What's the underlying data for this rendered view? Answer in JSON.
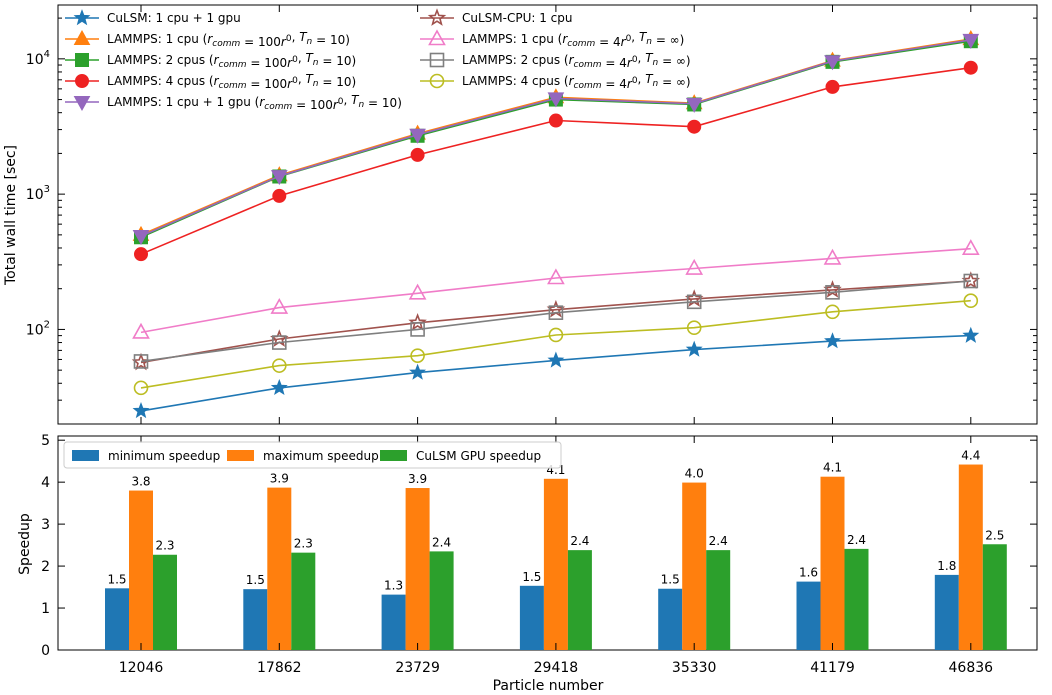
{
  "chart_data": [
    {
      "type": "line",
      "yscale": "log",
      "ylabel": "Total wall time [sec]",
      "xlabel": "",
      "ylim": [
        20,
        25000
      ],
      "y_ticks": [
        {
          "value": 100,
          "base": "10",
          "exp": "2"
        },
        {
          "value": 1000,
          "base": "10",
          "exp": "3"
        },
        {
          "value": 10000,
          "base": "10",
          "exp": "4"
        }
      ],
      "legend_position": "top-left",
      "x": [
        12046,
        17862,
        23729,
        29418,
        35330,
        41179,
        46836
      ],
      "series": [
        {
          "name": "CuLSM: 1 cpu + 1 gpu",
          "label_parts": [
            {
              "t": "CuLSM: 1 cpu + 1 gpu"
            }
          ],
          "color": "#1f77b4",
          "marker": "star",
          "filled": true,
          "values": [
            25,
            37,
            48,
            59,
            71,
            82,
            90
          ]
        },
        {
          "name": "LAMMPS: 1 cpu (r_comm = 100r^0, T_n = 10)",
          "label_parts": [
            {
              "t": "LAMMPS: 1 cpu ("
            },
            {
              "i": "r"
            },
            {
              "sub": "comm"
            },
            {
              "t": " = 100"
            },
            {
              "i": "r"
            },
            {
              "sup": "0"
            },
            {
              "t": ", "
            },
            {
              "i": "T"
            },
            {
              "sub": "n"
            },
            {
              "t": " = 10)"
            }
          ],
          "color": "#ff7f0e",
          "marker": "triangle-up",
          "filled": true,
          "values": [
            500,
            1380,
            2800,
            5200,
            4700,
            9700,
            14000
          ]
        },
        {
          "name": "LAMMPS: 2 cpus (r_comm = 100r^0, T_n = 10)",
          "label_parts": [
            {
              "t": "LAMMPS: 2 cpus ("
            },
            {
              "i": "r"
            },
            {
              "sub": "comm"
            },
            {
              "t": " = 100"
            },
            {
              "i": "r"
            },
            {
              "sup": "0"
            },
            {
              "t": ", "
            },
            {
              "i": "T"
            },
            {
              "sub": "n"
            },
            {
              "t": " = 10)"
            }
          ],
          "color": "#2ca02c",
          "marker": "square",
          "filled": true,
          "values": [
            480,
            1350,
            2700,
            5000,
            4600,
            9500,
            13500
          ]
        },
        {
          "name": "LAMMPS: 4 cpus (r_comm = 100r^0, T_n = 10)",
          "label_parts": [
            {
              "t": "LAMMPS: 4 cpus ("
            },
            {
              "i": "r"
            },
            {
              "sub": "comm"
            },
            {
              "t": " = 100"
            },
            {
              "i": "r"
            },
            {
              "sup": "0"
            },
            {
              "t": ", "
            },
            {
              "i": "T"
            },
            {
              "sub": "n"
            },
            {
              "t": " = 10)"
            }
          ],
          "color": "#ee2222",
          "marker": "circle",
          "filled": true,
          "values": [
            360,
            970,
            1950,
            3500,
            3150,
            6200,
            8600
          ]
        },
        {
          "name": "LAMMPS: 1 cpu + 1 gpu (r_comm = 100r^0, T_n = 10)",
          "label_parts": [
            {
              "t": "LAMMPS: 1 cpu + 1 gpu ("
            },
            {
              "i": "r"
            },
            {
              "sub": "comm"
            },
            {
              "t": " = 100"
            },
            {
              "i": "r"
            },
            {
              "sup": "0"
            },
            {
              "t": ", "
            },
            {
              "i": "T"
            },
            {
              "sub": "n"
            },
            {
              "t": " = 10)"
            }
          ],
          "color": "#9467bd",
          "marker": "triangle-down",
          "filled": true,
          "values": [
            490,
            1360,
            2750,
            5100,
            4650,
            9600,
            13800
          ]
        },
        {
          "name": "CuLSM-CPU: 1 cpu",
          "label_parts": [
            {
              "t": "CuLSM-CPU: 1 cpu"
            }
          ],
          "color": "#a0524d",
          "marker": "star",
          "filled": false,
          "values": [
            57,
            85,
            112,
            140,
            168,
            196,
            228
          ]
        },
        {
          "name": "LAMMPS: 1 cpu (r_comm = 4r^0, T_n = inf)",
          "label_parts": [
            {
              "t": "LAMMPS: 1 cpu ("
            },
            {
              "i": "r"
            },
            {
              "sub": "comm"
            },
            {
              "t": " = 4"
            },
            {
              "i": "r"
            },
            {
              "sup": "0"
            },
            {
              "t": ", "
            },
            {
              "i": "T"
            },
            {
              "sub": "n"
            },
            {
              "t": " = ∞)"
            }
          ],
          "color": "#f07cc8",
          "marker": "triangle-up",
          "filled": false,
          "values": [
            95,
            145,
            185,
            240,
            282,
            335,
            395
          ]
        },
        {
          "name": "LAMMPS: 2 cpus (r_comm = 4r^0, T_n = inf)",
          "label_parts": [
            {
              "t": "LAMMPS: 2 cpus ("
            },
            {
              "i": "r"
            },
            {
              "sub": "comm"
            },
            {
              "t": " = 4"
            },
            {
              "i": "r"
            },
            {
              "sup": "0"
            },
            {
              "t": ", "
            },
            {
              "i": "T"
            },
            {
              "sub": "n"
            },
            {
              "t": " = ∞)"
            }
          ],
          "color": "#7f7f7f",
          "marker": "square",
          "filled": false,
          "values": [
            58,
            80,
            100,
            133,
            160,
            188,
            228
          ]
        },
        {
          "name": "LAMMPS: 4 cpus (r_comm = 4r^0, T_n = inf)",
          "label_parts": [
            {
              "t": "LAMMPS: 4 cpus ("
            },
            {
              "i": "r"
            },
            {
              "sub": "comm"
            },
            {
              "t": " = 4"
            },
            {
              "i": "r"
            },
            {
              "sup": "0"
            },
            {
              "t": ", "
            },
            {
              "i": "T"
            },
            {
              "sub": "n"
            },
            {
              "t": " = ∞)"
            }
          ],
          "color": "#bcbd22",
          "marker": "circle",
          "filled": false,
          "values": [
            37,
            54,
            64,
            91,
            103,
            135,
            163
          ]
        }
      ]
    },
    {
      "type": "bar",
      "ylabel": "Speedup",
      "xlabel": "Particle number",
      "ylim": [
        0,
        5.1
      ],
      "y_ticks": [
        0,
        1,
        2,
        3,
        4,
        5
      ],
      "categories": [
        "12046",
        "17862",
        "23729",
        "29418",
        "35330",
        "41179",
        "46836"
      ],
      "legend_position": "top-left",
      "series": [
        {
          "name": "minimum speedup",
          "color": "#1f77b4",
          "values": [
            1.47,
            1.45,
            1.32,
            1.53,
            1.46,
            1.63,
            1.79
          ],
          "labels": [
            "1.5",
            "1.5",
            "1.3",
            "1.5",
            "1.5",
            "1.6",
            "1.8"
          ]
        },
        {
          "name": "maximum speedup",
          "color": "#ff7f0e",
          "values": [
            3.8,
            3.87,
            3.86,
            4.08,
            3.99,
            4.13,
            4.42
          ],
          "labels": [
            "3.8",
            "3.9",
            "3.9",
            "4.1",
            "4.0",
            "4.1",
            "4.4"
          ]
        },
        {
          "name": "CuLSM GPU speedup",
          "color": "#2ca02c",
          "values": [
            2.27,
            2.32,
            2.35,
            2.38,
            2.38,
            2.41,
            2.52
          ],
          "labels": [
            "2.3",
            "2.3",
            "2.4",
            "2.4",
            "2.4",
            "2.4",
            "2.5"
          ]
        }
      ]
    }
  ]
}
